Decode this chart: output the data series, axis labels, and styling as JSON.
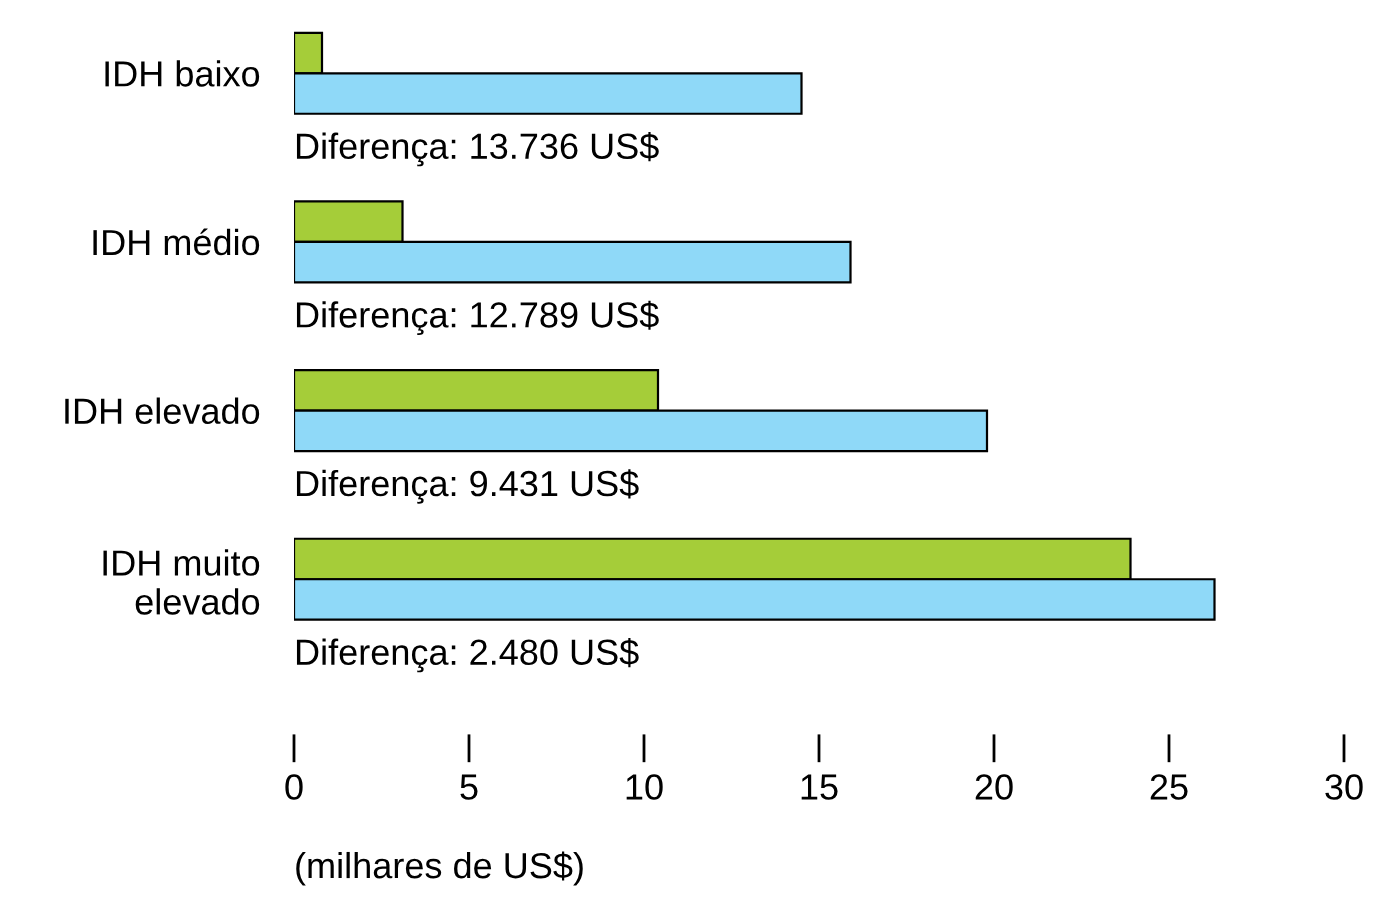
{
  "chart_data": {
    "type": "bar",
    "orientation": "horizontal",
    "categories": [
      "IDH baixo",
      "IDH médio",
      "IDH elevado",
      "IDH muito\nelevado"
    ],
    "series": [
      {
        "color": "#a5cd39",
        "values": [
          0.8,
          3.1,
          10.4,
          23.9
        ]
      },
      {
        "color": "#8fd9f8",
        "values": [
          14.5,
          15.9,
          19.8,
          26.3
        ]
      }
    ],
    "xlim": [
      0,
      30
    ],
    "xticks": [
      0,
      5,
      10,
      15,
      20,
      25,
      30
    ],
    "xlabel": "(milhares de US$)",
    "annotations": [
      "Diferença: 13.736 US$",
      "Diferença: 12.789 US$",
      "Diferença: 9.431 US$",
      "Diferença: 2.480 US$"
    ],
    "grid": false,
    "legend": false
  }
}
